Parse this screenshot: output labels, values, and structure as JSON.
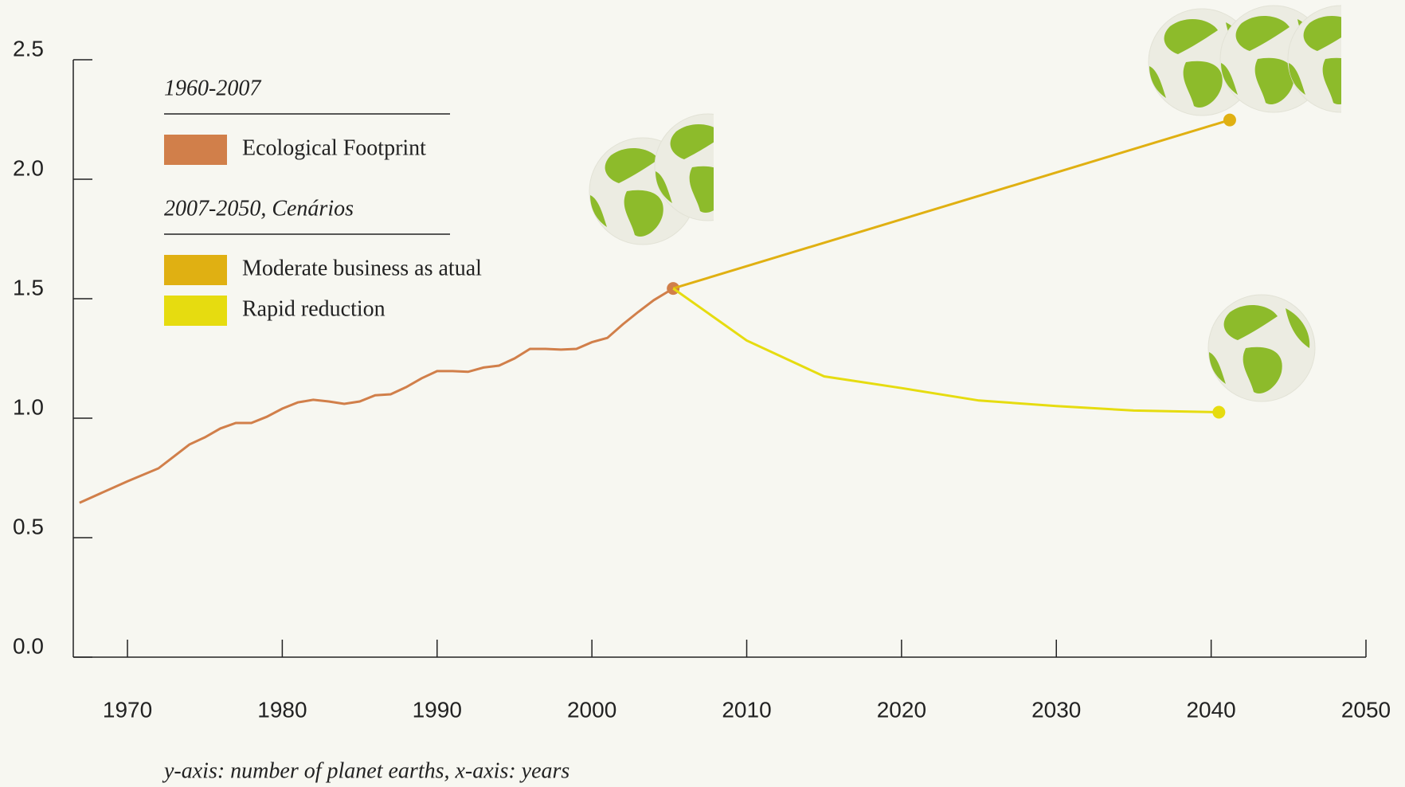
{
  "chart_data": {
    "type": "line",
    "xlim": [
      1966.5,
      2050
    ],
    "xticks": [
      1970,
      1980,
      1990,
      2000,
      2010,
      2020,
      2030,
      2040,
      2050
    ],
    "ylim": [
      0,
      2.5
    ],
    "yticks": [
      {
        "value": 0,
        "label": "0.0"
      },
      0.5,
      {
        "value": 1,
        "label": "1.0"
      },
      1.5,
      {
        "value": 2,
        "label": "2.0"
      },
      2.5
    ],
    "series": [
      {
        "name": "Ecological Footprint",
        "color": "#d17f4a",
        "x": [
          1966.9,
          1970,
          1972,
          1973,
          1974,
          1975,
          1976,
          1977,
          1978,
          1979,
          1980,
          1981,
          1982,
          1983,
          1984,
          1985,
          1986,
          1987,
          1988,
          1989,
          1990,
          1991,
          1992,
          1993,
          1994,
          1995,
          1996,
          1997,
          1998,
          1999,
          2000,
          2001,
          2002,
          2003,
          2004,
          2005.25
        ],
        "values": [
          0.646,
          0.736,
          0.79,
          0.84,
          0.89,
          0.92,
          0.957,
          0.98,
          0.98,
          1.006,
          1.04,
          1.066,
          1.077,
          1.07,
          1.06,
          1.07,
          1.096,
          1.1,
          1.13,
          1.167,
          1.197,
          1.197,
          1.194,
          1.212,
          1.22,
          1.25,
          1.29,
          1.29,
          1.287,
          1.29,
          1.318,
          1.336,
          1.393,
          1.445,
          1.494,
          1.543
        ]
      },
      {
        "name": "Moderate business as atual",
        "color": "#e0b012",
        "x": [
          2005.25,
          2041.2
        ],
        "values": [
          1.543,
          2.248
        ]
      },
      {
        "name": "Rapid reduction",
        "color": "#e6dc10",
        "x": [
          2005.25,
          2010,
          2015,
          2020,
          2025,
          2030,
          2035,
          2040.5
        ],
        "values": [
          1.543,
          1.325,
          1.175,
          1.126,
          1.074,
          1.051,
          1.032,
          1.025
        ]
      }
    ],
    "legend_groups": [
      {
        "title": "1960-2007",
        "entries": [
          0
        ]
      },
      {
        "title": "2007-2050, Cenários",
        "entries": [
          1,
          2
        ]
      }
    ],
    "caption": "y-axis: number of planet earths, x-axis: years"
  }
}
